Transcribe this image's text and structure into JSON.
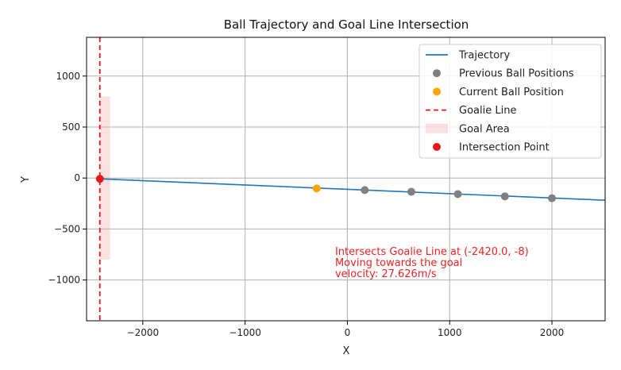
{
  "chart_data": {
    "type": "scatter",
    "title": "Ball Trajectory and Goal Line Intersection",
    "xlabel": "X",
    "ylabel": "Y",
    "xlim": [
      -2550,
      2520
    ],
    "ylim": [
      -1400,
      1380
    ],
    "xticks": [
      -2000,
      -1000,
      0,
      1000,
      2000
    ],
    "xtick_labels": [
      "−2000",
      "−1000",
      "0",
      "1000",
      "2000"
    ],
    "yticks": [
      1000,
      500,
      0,
      -500,
      -1000
    ],
    "ytick_labels": [
      "1000",
      "500",
      "0",
      "−500",
      "−1000"
    ],
    "grid": true,
    "legend_position": "top-right",
    "series": [
      {
        "name": "Trajectory",
        "kind": "line",
        "color": "#1f77b4",
        "x": [
          -2420,
          2520
        ],
        "y": [
          -8,
          -218
        ]
      },
      {
        "name": "Previous Ball Positions",
        "kind": "scatter",
        "color": "#808080",
        "x": [
          170,
          625,
          1080,
          1540,
          2000
        ],
        "y": [
          -118,
          -135,
          -158,
          -180,
          -198
        ]
      },
      {
        "name": "Current Ball Position",
        "kind": "scatter",
        "color": "#ffa500",
        "x": [
          -300
        ],
        "y": [
          -102
        ]
      },
      {
        "name": "Goalie Line",
        "kind": "vline",
        "color": "#e41a1c",
        "x": -2420
      },
      {
        "name": "Goal Area",
        "kind": "rect",
        "color": "#f4a6aa",
        "x": [
          -2420,
          -2320
        ],
        "y": [
          -800,
          800
        ]
      },
      {
        "name": "Intersection Point",
        "kind": "scatter",
        "color": "#e41a1c",
        "x": [
          -2420
        ],
        "y": [
          -8
        ]
      }
    ],
    "annotation": {
      "x": -120,
      "y": -880,
      "color": "#ee2222",
      "lines": [
        "Intersects Goalie Line at (-2420.0, -8)",
        "Moving towards the goal",
        "velocity: 27.626m/s"
      ]
    }
  }
}
